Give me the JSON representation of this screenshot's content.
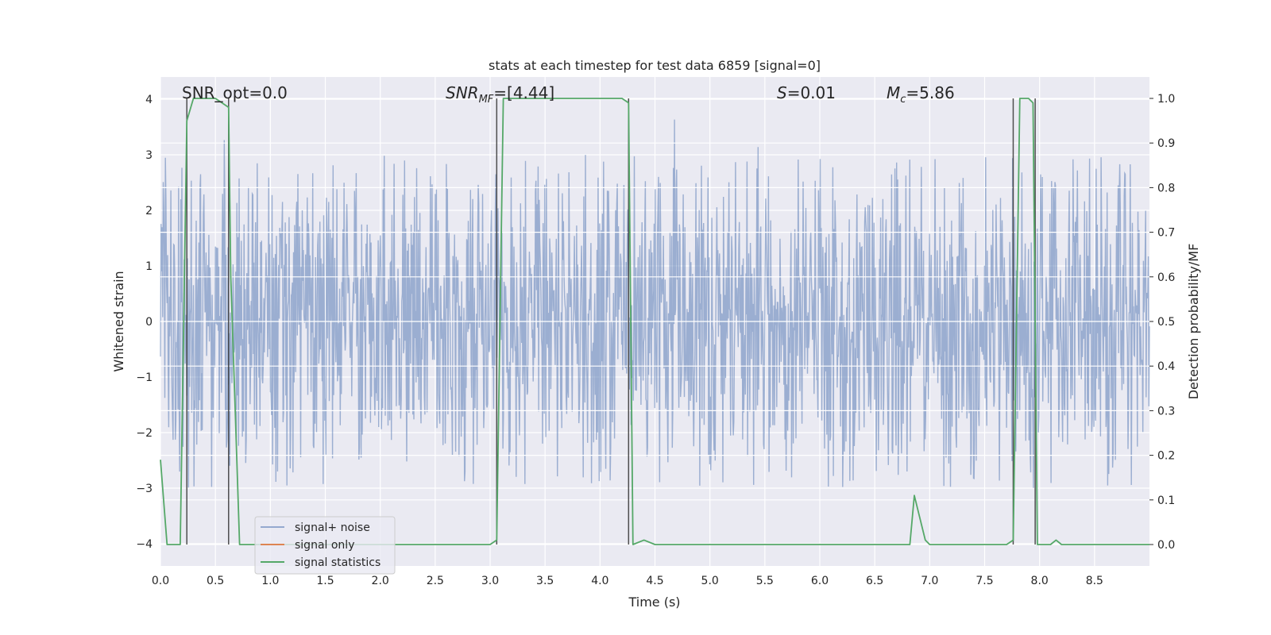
{
  "chart_data": {
    "type": "line",
    "title": "stats at each timestep for test data 6859 [signal=0]",
    "xlabel": "Time (s)",
    "ylabel": "Whitened strain",
    "ylabel_right": "Detection probability/MF",
    "xlim": [
      0,
      9.0
    ],
    "ylim": [
      -4.4,
      4.4
    ],
    "ylim_right": [
      -0.048,
      1.048
    ],
    "x_ticks": [
      "0.0",
      "0.5",
      "1.0",
      "1.5",
      "2.0",
      "2.5",
      "3.0",
      "3.5",
      "4.0",
      "4.5",
      "5.0",
      "5.5",
      "6.0",
      "6.5",
      "7.0",
      "7.5",
      "8.0",
      "8.5"
    ],
    "y_ticks": [
      "−4",
      "−3",
      "−2",
      "−1",
      "0",
      "1",
      "2",
      "3",
      "4"
    ],
    "y_ticks_right": [
      "0.0",
      "0.1",
      "0.2",
      "0.3",
      "0.4",
      "0.5",
      "0.6",
      "0.7",
      "0.8",
      "0.9",
      "1.0"
    ],
    "grid": true,
    "legend_position": "lower-left",
    "annotations": {
      "snr_opt": "SNR_opt=0.0",
      "snr_mf_sym": "SNR",
      "snr_mf_sub": "MF",
      "snr_mf_val": "=[4.44]",
      "s_sym": "S",
      "s_val": "=0.01",
      "mc_sym": "M",
      "mc_sub": "c",
      "mc_val": "=5.86"
    },
    "series": [
      {
        "name": "signal+ noise",
        "color": "#4c72b0",
        "noise_amplitude": 1.6,
        "y_extremes": [
          -4.0,
          3.9
        ]
      },
      {
        "name": "signal only",
        "color": "#dd8452",
        "values": []
      },
      {
        "name": "signal statistics",
        "color": "#55a868",
        "x": [
          0.0,
          0.06,
          0.18,
          0.24,
          0.3,
          0.5,
          0.62,
          0.64,
          0.68,
          0.72,
          1.0,
          2.0,
          2.5,
          3.0,
          3.06,
          3.12,
          3.5,
          4.2,
          4.26,
          4.3,
          4.4,
          4.5,
          5.0,
          6.0,
          6.6,
          6.82,
          6.86,
          6.9,
          6.96,
          7.0,
          7.5,
          7.7,
          7.76,
          7.82,
          7.9,
          7.94,
          7.98,
          8.0,
          8.1,
          8.15,
          8.2,
          8.5,
          9.0
        ],
        "y": [
          0.19,
          0.0,
          0.0,
          0.95,
          1.0,
          1.0,
          0.98,
          0.6,
          0.3,
          0.0,
          0.0,
          0.0,
          0.0,
          0.0,
          0.01,
          1.0,
          1.0,
          1.0,
          0.99,
          0.0,
          0.01,
          0.0,
          0.0,
          0.0,
          0.0,
          0.0,
          0.11,
          0.07,
          0.01,
          0.0,
          0.0,
          0.0,
          0.01,
          1.0,
          1.0,
          0.99,
          0.0,
          0.0,
          0.0,
          0.01,
          0.0,
          0.0,
          0.0
        ]
      }
    ],
    "vertical_lines_x": [
      0.24,
      0.62,
      3.06,
      4.26,
      7.76,
      7.96
    ]
  }
}
